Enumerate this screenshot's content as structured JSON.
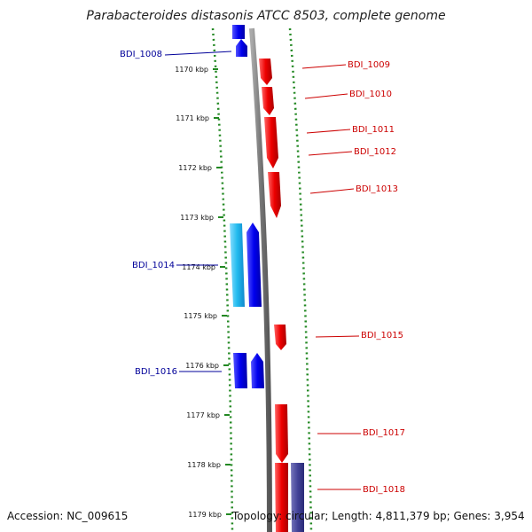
{
  "title": "Parabacteroides distasonis ATCC 8503, complete genome",
  "footer": {
    "accession": "Accession: NC_009615",
    "topology": "Topology: circular; Length: 4,811,379 bp; Genes: 3,954"
  },
  "colors": {
    "forward": "#ee1111",
    "reverse": "#1111dd",
    "reverse_light": "#22bbee",
    "other": "#444499",
    "backbone": "#888888",
    "ticks": "#228822",
    "label_forward": "#cc0000",
    "label_reverse": "#000099"
  },
  "ticks": [
    "1170 kbp",
    "1171 kbp",
    "1172 kbp",
    "1173 kbp",
    "1174 kbp",
    "1175 kbp",
    "1176 kbp",
    "1177 kbp",
    "1178 kbp",
    "1179 kbp"
  ],
  "genes": [
    {
      "label": "BDI_1008",
      "strand": "reverse"
    },
    {
      "label": "BDI_1009",
      "strand": "forward"
    },
    {
      "label": "BDI_1010",
      "strand": "forward"
    },
    {
      "label": "BDI_1011",
      "strand": "forward"
    },
    {
      "label": "BDI_1012",
      "strand": "forward"
    },
    {
      "label": "BDI_1013",
      "strand": "forward"
    },
    {
      "label": "BDI_1014",
      "strand": "reverse"
    },
    {
      "label": "BDI_1015",
      "strand": "forward"
    },
    {
      "label": "BDI_1016",
      "strand": "reverse"
    },
    {
      "label": "BDI_1017",
      "strand": "forward"
    },
    {
      "label": "BDI_1018",
      "strand": "forward"
    }
  ]
}
